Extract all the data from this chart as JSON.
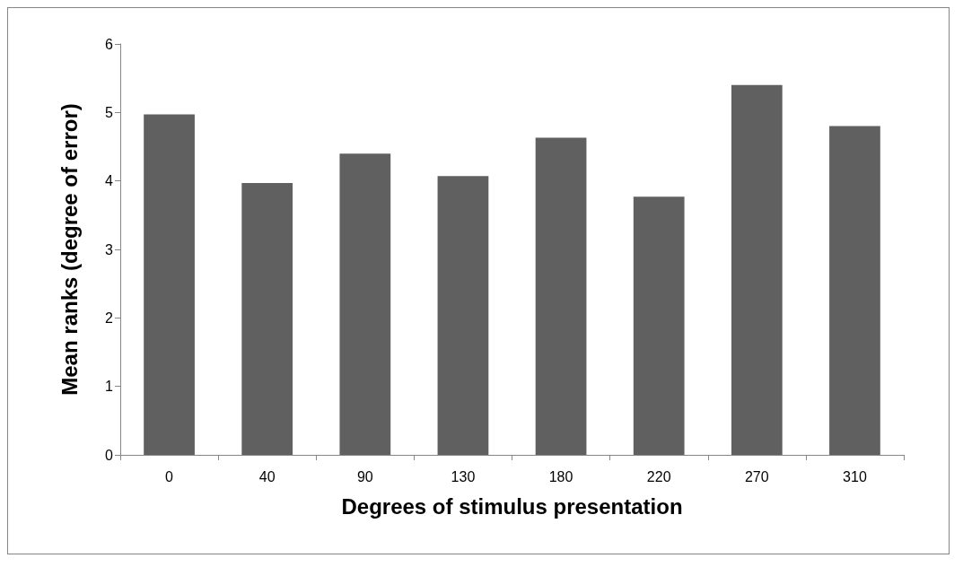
{
  "chart_data": {
    "type": "bar",
    "xlabel": "Degrees of stimulus presentation",
    "ylabel": "Mean ranks (degree of error)",
    "categories": [
      "0",
      "40",
      "90",
      "130",
      "180",
      "220",
      "270",
      "310"
    ],
    "values": [
      4.97,
      3.97,
      4.4,
      4.07,
      4.63,
      3.77,
      5.4,
      4.8
    ],
    "color": "#606060",
    "ylim": [
      0,
      6
    ],
    "yticks": [
      0,
      1,
      2,
      3,
      4,
      5,
      6
    ],
    "grid": false
  }
}
